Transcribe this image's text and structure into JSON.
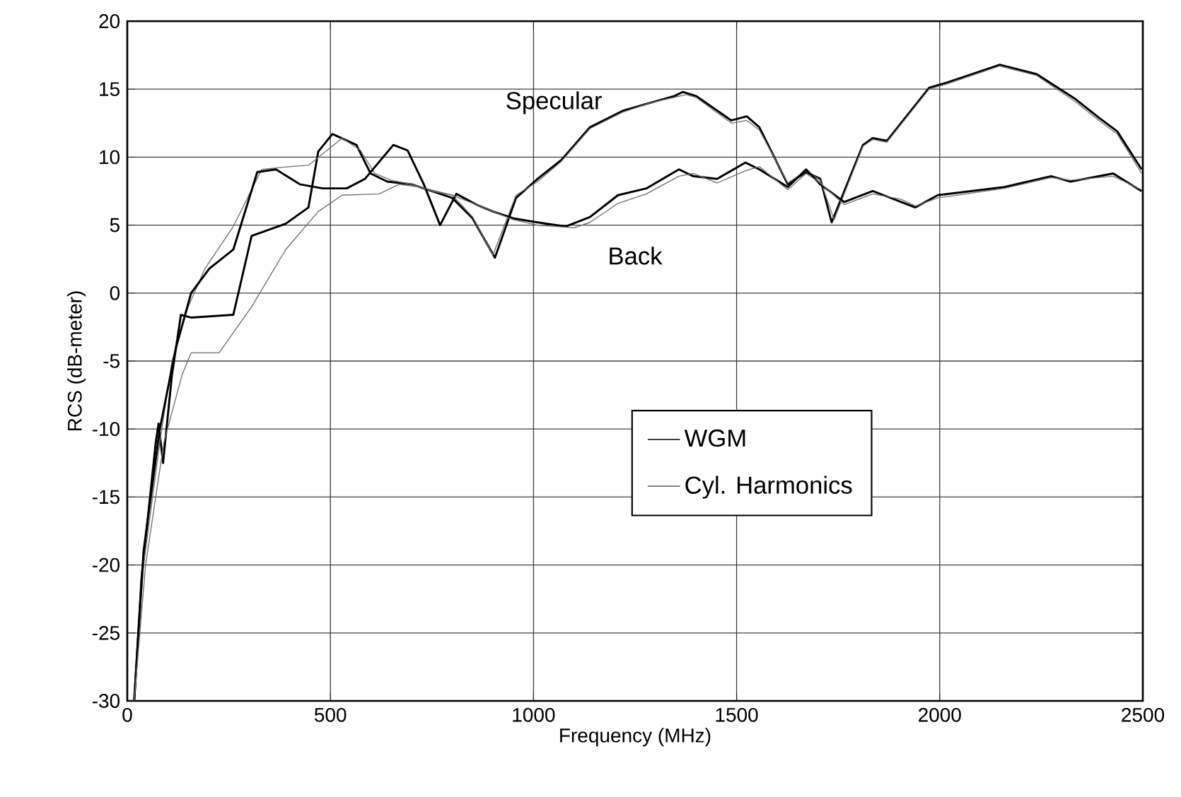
{
  "chart_data": {
    "type": "line",
    "xlabel": "Frequency (MHz)",
    "ylabel": "RCS (dB-meter)",
    "xlim": [
      0,
      2500
    ],
    "xticks": [
      0,
      500,
      1000,
      1500,
      2000,
      2500
    ],
    "ylim": [
      -30,
      20
    ],
    "yticks": [
      -30,
      -25,
      -20,
      -15,
      -10,
      -5,
      0,
      5,
      10,
      15,
      20
    ],
    "grid": true,
    "legend": "center",
    "marker": "none",
    "line_style": "solid",
    "series": [
      {
        "name": "WGM",
        "color": "#000000",
        "x": [
          17,
          35,
          70,
          77,
          88,
          110,
          132,
          157,
          261,
          306,
          390,
          446,
          470,
          505,
          564,
          599,
          640,
          700,
          750,
          800,
          850,
          905,
          957,
          1010,
          1069,
          1139,
          1219,
          1288,
          1347,
          1368,
          1400,
          1487,
          1525,
          1556,
          1626,
          1671,
          1706,
          1734,
          1811,
          1835,
          1870,
          1974,
          2019,
          2148,
          2239,
          2333,
          2392,
          2437,
          2497
        ],
        "values": [
          -30,
          -21,
          -11,
          -9.6,
          -12.5,
          -6,
          -1.6,
          -1.8,
          -1.6,
          4.2,
          5.1,
          6.3,
          10.4,
          11.7,
          10.9,
          8.8,
          8.2,
          8.0,
          7.5,
          7.0,
          5.5,
          2.6,
          7.0,
          8.4,
          9.8,
          12.2,
          13.4,
          14.0,
          14.5,
          14.8,
          14.5,
          12.7,
          13.0,
          12.2,
          8.0,
          8.9,
          8.4,
          5.2,
          10.9,
          11.4,
          11.2,
          15.1,
          15.5,
          16.8,
          16.1,
          14.3,
          12.9,
          11.9,
          9.1
        ]
      },
      {
        "name": "Cyl. Harmonics",
        "color": "#6e6e6e",
        "x": [
          17,
          40,
          80,
          110,
          150,
          191,
          261,
          331,
          400,
          446,
          529,
          574,
          609,
          650,
          700,
          750,
          800,
          850,
          900,
          957,
          1010,
          1069,
          1139,
          1219,
          1288,
          1347,
          1375,
          1400,
          1487,
          1525,
          1556,
          1626,
          1671,
          1706,
          1740,
          1811,
          1835,
          1870,
          1974,
          2019,
          2148,
          2239,
          2333,
          2392,
          2437,
          2497
        ],
        "values": [
          -30,
          -20,
          -11,
          -5,
          -1,
          1.8,
          4.9,
          9.1,
          9.3,
          9.4,
          11.4,
          10.5,
          8.8,
          8.3,
          8.0,
          7.5,
          7.2,
          5.6,
          2.8,
          7.2,
          8.2,
          9.7,
          12.1,
          13.3,
          14.0,
          14.4,
          14.6,
          14.4,
          12.5,
          12.7,
          12.0,
          8.1,
          9.0,
          8.3,
          5.4,
          10.8,
          11.3,
          11.1,
          15.0,
          15.4,
          16.7,
          16.0,
          14.1,
          12.7,
          11.7,
          8.8
        ]
      },
      {
        "color": "#000000",
        "x": [
          17,
          40,
          80,
          120,
          157,
          202,
          261,
          320,
          366,
          425,
          481,
          540,
          585,
          655,
          690,
          730,
          770,
          810,
          860,
          900,
          950,
          1010,
          1079,
          1139,
          1208,
          1278,
          1358,
          1393,
          1452,
          1522,
          1556,
          1626,
          1671,
          1706,
          1765,
          1835,
          1905,
          1940,
          1995,
          2159,
          2274,
          2322,
          2427,
          2497
        ],
        "values": [
          -30,
          -19,
          -10,
          -4,
          0,
          1.8,
          3.2,
          8.9,
          9.1,
          8,
          7.7,
          7.7,
          8.4,
          10.9,
          10.5,
          8,
          5,
          7.3,
          6.5,
          6,
          5.5,
          5.2,
          4.9,
          5.6,
          7.2,
          7.7,
          9.1,
          8.6,
          8.4,
          9.6,
          9.1,
          7.8,
          9.1,
          8.0,
          6.7,
          7.5,
          6.7,
          6.3,
          7.2,
          7.8,
          8.6,
          8.2,
          8.8,
          7.5
        ]
      },
      {
        "color": "#6e6e6e",
        "x": [
          17,
          45,
          90,
          135,
          157,
          226,
          306,
          390,
          470,
          529,
          620,
          669,
          720,
          800,
          860,
          900,
          950,
          1010,
          1100,
          1139,
          1208,
          1278,
          1358,
          1393,
          1452,
          1522,
          1556,
          1626,
          1671,
          1706,
          1765,
          1835,
          1905,
          1940,
          1995,
          2159,
          2274,
          2322,
          2427,
          2497
        ],
        "values": [
          -30,
          -20,
          -11,
          -6,
          -4.4,
          -4.4,
          -1.0,
          3.2,
          6.0,
          7.2,
          7.3,
          8.0,
          7.8,
          7.2,
          6.5,
          6,
          5.4,
          5.0,
          4.8,
          5.2,
          6.6,
          7.3,
          8.6,
          8.8,
          8.1,
          9.0,
          9.3,
          7.6,
          8.8,
          8.1,
          6.5,
          7.3,
          6.9,
          6.4,
          7.0,
          7.7,
          8.5,
          8.3,
          8.6,
          7.6
        ]
      }
    ],
    "annotations": [
      "Specular",
      "Back"
    ]
  }
}
